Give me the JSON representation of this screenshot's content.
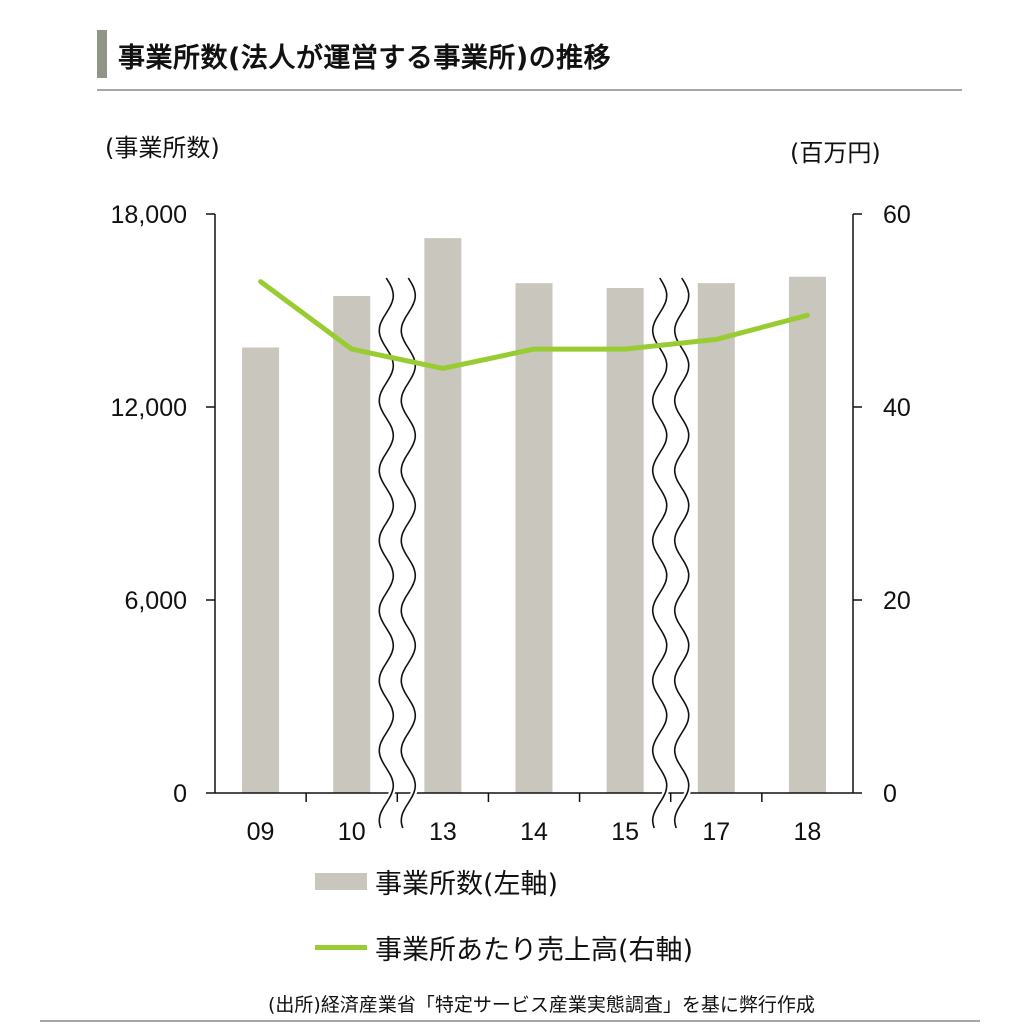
{
  "title": "事業所数(法人が運営する事業所)の推移",
  "left_unit": "(事業所数)",
  "right_unit": "(百万円)",
  "source": "(出所)経済産業省「特定サービス産業実態調査」を基に弊行作成",
  "legend": {
    "bar": "事業所数(左軸)",
    "line": "事業所あたり売上高(右軸)"
  },
  "colors": {
    "bar": "#c9c6bd",
    "line": "#99cc33",
    "axis": "#111111"
  },
  "chart_data": {
    "type": "bar",
    "categories": [
      "09",
      "10",
      "13",
      "14",
      "15",
      "17",
      "18"
    ],
    "series": [
      {
        "name": "事業所数(左軸)",
        "type": "bar",
        "axis": "left",
        "values": [
          13850,
          15450,
          17250,
          15850,
          15700,
          15850,
          16050
        ]
      },
      {
        "name": "事業所あたり売上高(右軸)",
        "type": "line",
        "axis": "right",
        "values": [
          53,
          46,
          44,
          46,
          46,
          47,
          49.5
        ]
      }
    ],
    "left_axis": {
      "ticks": [
        "0",
        "6,000",
        "12,000",
        "18,000"
      ],
      "ylim": [
        0,
        18000
      ]
    },
    "right_axis": {
      "ticks": [
        "0",
        "20",
        "40",
        "60"
      ],
      "ylim": [
        0,
        60
      ]
    },
    "axis_breaks_after": [
      "10",
      "15"
    ],
    "grid": false,
    "legend_position": "bottom"
  }
}
